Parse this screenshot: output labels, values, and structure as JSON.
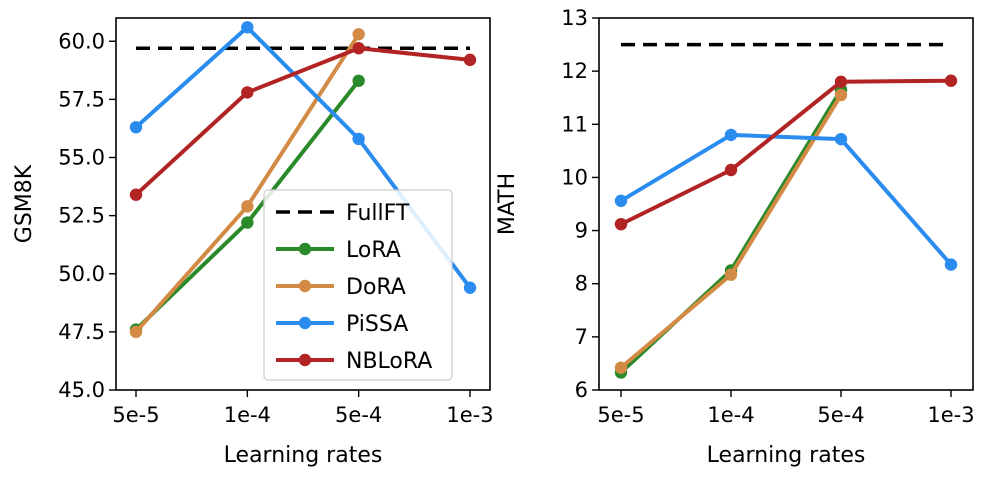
{
  "chart_data": [
    {
      "type": "line",
      "categories": [
        "5e-5",
        "1e-4",
        "5e-4",
        "1e-3"
      ],
      "xlabel": "Learning rates",
      "ylabel": "GSM8K",
      "ylim": [
        45.0,
        61.0
      ],
      "yticks": [
        45.0,
        47.5,
        50.0,
        52.5,
        55.0,
        57.5,
        60.0
      ],
      "ytick_labels": [
        "45.0",
        "47.5",
        "50.0",
        "52.5",
        "55.0",
        "57.5",
        "60.0"
      ],
      "reference": {
        "name": "FullFT",
        "value": 59.7,
        "color": "#000000"
      },
      "series": [
        {
          "name": "LoRA",
          "color": "#2a8a2a",
          "values": [
            47.6,
            52.2,
            58.3,
            null
          ]
        },
        {
          "name": "DoRA",
          "color": "#d28a45",
          "values": [
            47.5,
            52.9,
            60.3,
            null
          ]
        },
        {
          "name": "PiSSA",
          "color": "#2b8cf0",
          "values": [
            56.3,
            60.6,
            55.8,
            49.4
          ]
        },
        {
          "name": "NBLoRA",
          "color": "#b22424",
          "values": [
            53.4,
            57.8,
            59.7,
            59.2
          ]
        }
      ],
      "legend": {
        "placement": "lower-right",
        "entries": [
          "FullFT",
          "LoRA",
          "DoRA",
          "PiSSA",
          "NBLoRA"
        ]
      }
    },
    {
      "type": "line",
      "categories": [
        "5e-5",
        "1e-4",
        "5e-4",
        "1e-3"
      ],
      "xlabel": "Learning rates",
      "ylabel": "MATH",
      "ylim": [
        6,
        13
      ],
      "yticks": [
        6,
        7,
        8,
        9,
        10,
        11,
        12,
        13
      ],
      "ytick_labels": [
        "6",
        "7",
        "8",
        "9",
        "10",
        "11",
        "12",
        "13"
      ],
      "reference": {
        "name": "FullFT",
        "value": 12.5,
        "color": "#000000"
      },
      "series": [
        {
          "name": "LoRA",
          "color": "#2a8a2a",
          "values": [
            6.33,
            8.25,
            11.65,
            null
          ]
        },
        {
          "name": "DoRA",
          "color": "#d28a45",
          "values": [
            6.42,
            8.17,
            11.55,
            null
          ]
        },
        {
          "name": "PiSSA",
          "color": "#2b8cf0",
          "values": [
            9.56,
            10.8,
            10.72,
            8.36
          ]
        },
        {
          "name": "NBLoRA",
          "color": "#b22424",
          "values": [
            9.12,
            10.14,
            11.8,
            11.82
          ]
        }
      ]
    }
  ]
}
